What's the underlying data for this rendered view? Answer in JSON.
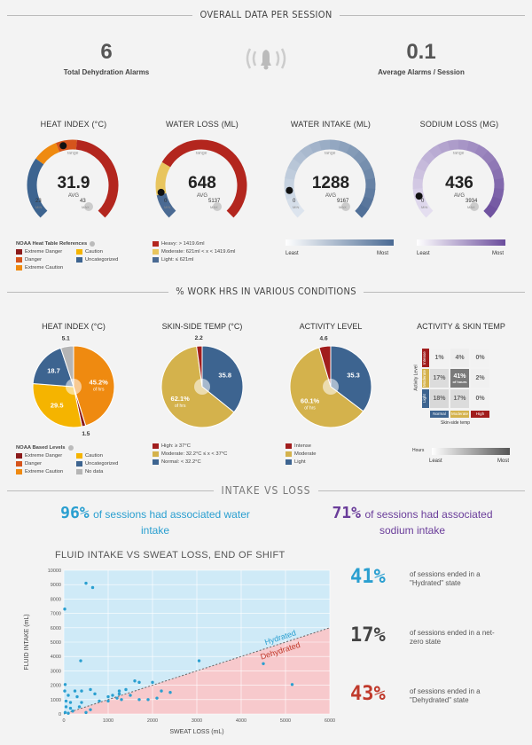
{
  "sections": {
    "overall": "OVERALL DATA PER SESSION",
    "work_hrs": "% WORK HRS IN VARIOUS CONDITIONS",
    "intake": "INTAKE VS LOSS"
  },
  "kpis": {
    "alarms_value": "6",
    "alarms_label": "Total Dehydration Alarms",
    "avg_value": "0.1",
    "avg_label": "Average Alarms / Session"
  },
  "gauges": [
    {
      "title": "HEAT INDEX (°C)",
      "value": "31.9",
      "avg": "AVG",
      "min": "23",
      "max": "43",
      "min_unit": "MIN",
      "max_unit": "MAX",
      "range": "range",
      "fraction": 0.45,
      "color": "#b3261e"
    },
    {
      "title": "WATER LOSS (ML)",
      "value": "648",
      "avg": "AVG",
      "min": "0",
      "max": "5137",
      "min_unit": "MIN",
      "max_unit": "MAX",
      "range": "range",
      "fraction": 0.13,
      "color": "#b3261e"
    },
    {
      "title": "WATER INTAKE (ML)",
      "value": "1288",
      "avg": "AVG",
      "min": "0",
      "max": "9167",
      "min_unit": "MIN",
      "max_unit": "MAX",
      "range": "range",
      "fraction": 0.14,
      "color": "#4a6a93"
    },
    {
      "title": "SODIUM LOSS (MG)",
      "value": "436",
      "avg": "AVG",
      "min": "0",
      "max": "3934",
      "min_unit": "MIN",
      "max_unit": "MAX",
      "range": "range",
      "fraction": 0.11,
      "color": "#6a4c9c"
    }
  ],
  "gauge_legends": {
    "heat_title": "NOAA Heat Table References",
    "heat_items": [
      {
        "label": "Extreme Danger",
        "color": "#8b1a1a"
      },
      {
        "label": "Caution",
        "color": "#f5b400"
      },
      {
        "label": "Danger",
        "color": "#d5541c"
      },
      {
        "label": "Uncategorized",
        "color": "#3d6490"
      },
      {
        "label": "Extreme Caution",
        "color": "#ef8a10"
      }
    ],
    "loss_items": [
      {
        "label": "Heavy: > 1419.6ml",
        "color": "#b3261e"
      },
      {
        "label": "Moderate: 621ml < x < 1419.6ml",
        "color": "#e8c55e"
      },
      {
        "label": "Light: ≤ 621ml",
        "color": "#4a6a93"
      }
    ],
    "least": "Least",
    "most": "Most"
  },
  "pies": [
    {
      "title": "HEAT INDEX (°C)",
      "slices": [
        {
          "value": 45.2,
          "label": "45.2%",
          "sub": "of hrs",
          "color": "#ef8a10"
        },
        {
          "value": 1.5,
          "label": "1.5",
          "color": "#8b1a1a"
        },
        {
          "value": 29.5,
          "label": "29.5",
          "color": "#f5b400"
        },
        {
          "value": 18.7,
          "label": "18.7",
          "color": "#3d6490"
        },
        {
          "value": 5.1,
          "label": "5.1",
          "color": "#b5b5b5"
        }
      ]
    },
    {
      "title": "SKIN-SIDE TEMP (°C)",
      "slices": [
        {
          "value": 35.8,
          "label": "35.8",
          "color": "#3d6490"
        },
        {
          "value": 62.1,
          "label": "62.1%",
          "sub": "of hrs",
          "color": "#d4b24c"
        },
        {
          "value": 2.2,
          "label": "2.2",
          "color": "#a11d1d"
        }
      ]
    },
    {
      "title": "ACTIVITY LEVEL",
      "slices": [
        {
          "value": 35.3,
          "label": "35.3",
          "color": "#3d6490"
        },
        {
          "value": 60.1,
          "label": "60.1%",
          "sub": "of hrs",
          "color": "#d4b24c"
        },
        {
          "value": 4.6,
          "label": "4.6",
          "color": "#a11d1d"
        }
      ]
    }
  ],
  "pie_legends": {
    "heat_title": "NOAA Based Levels",
    "heat_items": [
      {
        "label": "Extreme Danger",
        "color": "#8b1a1a"
      },
      {
        "label": "Caution",
        "color": "#f5b400"
      },
      {
        "label": "Danger",
        "color": "#d5541c"
      },
      {
        "label": "Uncategorized",
        "color": "#3d6490"
      },
      {
        "label": "Extreme Caution",
        "color": "#ef8a10"
      },
      {
        "label": "No data",
        "color": "#b5b5b5"
      }
    ],
    "skin_items": [
      {
        "label": "High: ≥ 37°C",
        "color": "#a11d1d"
      },
      {
        "label": "Moderate: 32.2°C ≤ x < 37°C",
        "color": "#d4b24c"
      },
      {
        "label": "Normal: < 32.2°C",
        "color": "#3d6490"
      }
    ],
    "activity_items": [
      {
        "label": "Intense",
        "color": "#a11d1d"
      },
      {
        "label": "Moderate",
        "color": "#d4b24c"
      },
      {
        "label": "Light",
        "color": "#3d6490"
      }
    ]
  },
  "heatmap": {
    "title": "ACTIVITY & SKIN TEMP",
    "y_axis": "Activity Level",
    "x_axis": "Skin-side temp",
    "rows": [
      "Intense",
      "Moderate",
      "Light"
    ],
    "cols": [
      "Normal",
      "Moderate",
      "High"
    ],
    "cells": [
      [
        "1%",
        "4%",
        "0%"
      ],
      [
        "17%",
        "41%",
        "2%"
      ],
      [
        "18%",
        "17%",
        "0%"
      ]
    ],
    "center_sub": "of hours",
    "hours": "Hours",
    "least": "Least",
    "most": "Most"
  },
  "intake_stats": {
    "water_pct": "96%",
    "water_text": "of sessions had associated water intake",
    "sodium_pct": "71%",
    "sodium_text": "of sessions had associated sodium intake"
  },
  "side_stats": [
    {
      "pct": "41%",
      "text": "of sessions ended in a \"Hydrated\" state",
      "color": "#2a9fd0"
    },
    {
      "pct": "17%",
      "text": "of sessions ended in a net-zero state",
      "color": "#444444"
    },
    {
      "pct": "43%",
      "text": "of sessions ended in a \"Dehydrated\" state",
      "color": "#c0392b"
    }
  ],
  "chart_data": {
    "type": "scatter",
    "title": "FLUID INTAKE VS SWEAT LOSS, END OF SHIFT",
    "xlabel": "SWEAT LOSS (mL)",
    "ylabel": "FLUID INTAKE (mL)",
    "xlim": [
      0,
      6000
    ],
    "ylim": [
      0,
      10000
    ],
    "xticks": [
      "0",
      "1000",
      "2000",
      "3000",
      "4000",
      "5000",
      "6000"
    ],
    "yticks": [
      "0",
      "1000",
      "2000",
      "3000",
      "4000",
      "5000",
      "6000",
      "7000",
      "8000",
      "9000",
      "10000"
    ],
    "region_labels": [
      "Hydrated",
      "Dehydrated"
    ],
    "grid": true,
    "points": [
      {
        "x": 500,
        "y": 9100
      },
      {
        "x": 650,
        "y": 8800
      },
      {
        "x": 20,
        "y": 7300
      },
      {
        "x": 380,
        "y": 3700
      },
      {
        "x": 3050,
        "y": 3700
      },
      {
        "x": 4500,
        "y": 3500
      },
      {
        "x": 5150,
        "y": 2050
      },
      {
        "x": 30,
        "y": 2050
      },
      {
        "x": 1600,
        "y": 2300
      },
      {
        "x": 1700,
        "y": 2200
      },
      {
        "x": 2000,
        "y": 2200
      },
      {
        "x": 250,
        "y": 1600
      },
      {
        "x": 400,
        "y": 1600
      },
      {
        "x": 600,
        "y": 1700
      },
      {
        "x": 1250,
        "y": 1600
      },
      {
        "x": 1400,
        "y": 1700
      },
      {
        "x": 2200,
        "y": 1600
      },
      {
        "x": 2400,
        "y": 1500
      },
      {
        "x": 100,
        "y": 1300
      },
      {
        "x": 300,
        "y": 1200
      },
      {
        "x": 700,
        "y": 1400
      },
      {
        "x": 1000,
        "y": 1200
      },
      {
        "x": 1100,
        "y": 1300
      },
      {
        "x": 1200,
        "y": 1100
      },
      {
        "x": 1300,
        "y": 1000
      },
      {
        "x": 1500,
        "y": 1300
      },
      {
        "x": 1700,
        "y": 1000
      },
      {
        "x": 1900,
        "y": 1000
      },
      {
        "x": 2100,
        "y": 1100
      },
      {
        "x": 50,
        "y": 900
      },
      {
        "x": 150,
        "y": 800
      },
      {
        "x": 400,
        "y": 800
      },
      {
        "x": 800,
        "y": 900
      },
      {
        "x": 1000,
        "y": 900
      },
      {
        "x": 50,
        "y": 500
      },
      {
        "x": 150,
        "y": 400
      },
      {
        "x": 350,
        "y": 500
      },
      {
        "x": 200,
        "y": 200
      },
      {
        "x": 600,
        "y": 300
      },
      {
        "x": 30,
        "y": 100
      },
      {
        "x": 100,
        "y": 50
      },
      {
        "x": 500,
        "y": 100
      },
      {
        "x": 20,
        "y": 1600
      },
      {
        "x": 1250,
        "y": 1400
      }
    ],
    "threshold_line": {
      "x": [
        0,
        6000
      ],
      "y": [
        0,
        6000
      ]
    }
  },
  "colors": {
    "hydrated_bg": "#cfeaf7",
    "dehydrated_bg": "#f7c9cc",
    "point": "#2a9fd0",
    "water": "#2a9fd0",
    "sodium": "#6a3d9a"
  }
}
